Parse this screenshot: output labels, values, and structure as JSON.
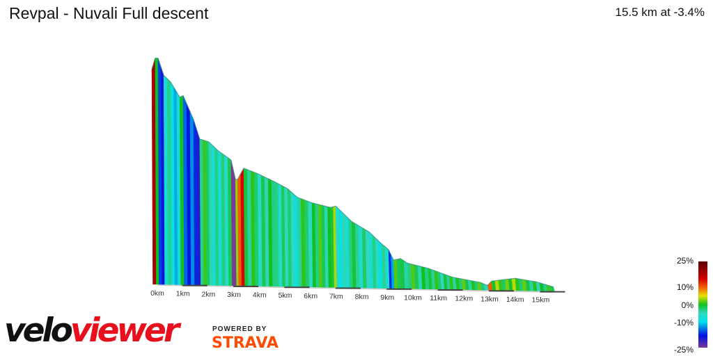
{
  "header": {
    "title": "Revpal - Nuvali Full descent",
    "summary": "15.5 km at -3.4%"
  },
  "chart_data": {
    "type": "area",
    "title": "Revpal - Nuvali Full descent",
    "xlabel": "",
    "ylabel": "",
    "x_unit": "km",
    "y_unit": "m (estimated)",
    "xlim": [
      0,
      15.5
    ],
    "x_ticks": [
      "0km",
      "1km",
      "2km",
      "3km",
      "4km",
      "5km",
      "6km",
      "7km",
      "8km",
      "9km",
      "10km",
      "11km",
      "12km",
      "13km",
      "14km",
      "15km"
    ],
    "points": [
      [
        0,
        563
      ],
      [
        0.13,
        591
      ],
      [
        0.24,
        591
      ],
      [
        0.46,
        549
      ],
      [
        0.73,
        532
      ],
      [
        1.08,
        495
      ],
      [
        1.21,
        499
      ],
      [
        1.61,
        440
      ],
      [
        1.85,
        392
      ],
      [
        2.2,
        385
      ],
      [
        2.55,
        364
      ],
      [
        3.06,
        341
      ],
      [
        3.23,
        293
      ],
      [
        3.31,
        293
      ],
      [
        3.55,
        321
      ],
      [
        4.09,
        308
      ],
      [
        4.76,
        288
      ],
      [
        5.24,
        272
      ],
      [
        5.62,
        251
      ],
      [
        6.18,
        238
      ],
      [
        6.91,
        227
      ],
      [
        7.1,
        231
      ],
      [
        7.72,
        193
      ],
      [
        8.39,
        168
      ],
      [
        8.87,
        139
      ],
      [
        9.14,
        125
      ],
      [
        9.33,
        99
      ],
      [
        9.6,
        103
      ],
      [
        9.87,
        92
      ],
      [
        10.67,
        80
      ],
      [
        11.61,
        59
      ],
      [
        12.69,
        47
      ],
      [
        12.96,
        40
      ],
      [
        13.12,
        51
      ],
      [
        14.03,
        59
      ],
      [
        14.84,
        51
      ],
      [
        15.51,
        39
      ]
    ],
    "color_scale": {
      "labels": [
        "25%",
        "10%",
        "0%",
        "-10%",
        "-25%"
      ],
      "stops": [
        [
          25,
          "#5a0000"
        ],
        [
          15,
          "#d00000"
        ],
        [
          10,
          "#f06000"
        ],
        [
          5,
          "#e8e000"
        ],
        [
          0,
          "#10c020"
        ],
        [
          -5,
          "#30d8c0"
        ],
        [
          -10,
          "#00e0e8"
        ],
        [
          -18,
          "#0010e0"
        ],
        [
          -25,
          "#7a3a98"
        ]
      ]
    }
  },
  "branding": {
    "velo": "velo",
    "viewer": "viewer",
    "powered_by": "POWERED BY",
    "strava": "STRAVA"
  }
}
